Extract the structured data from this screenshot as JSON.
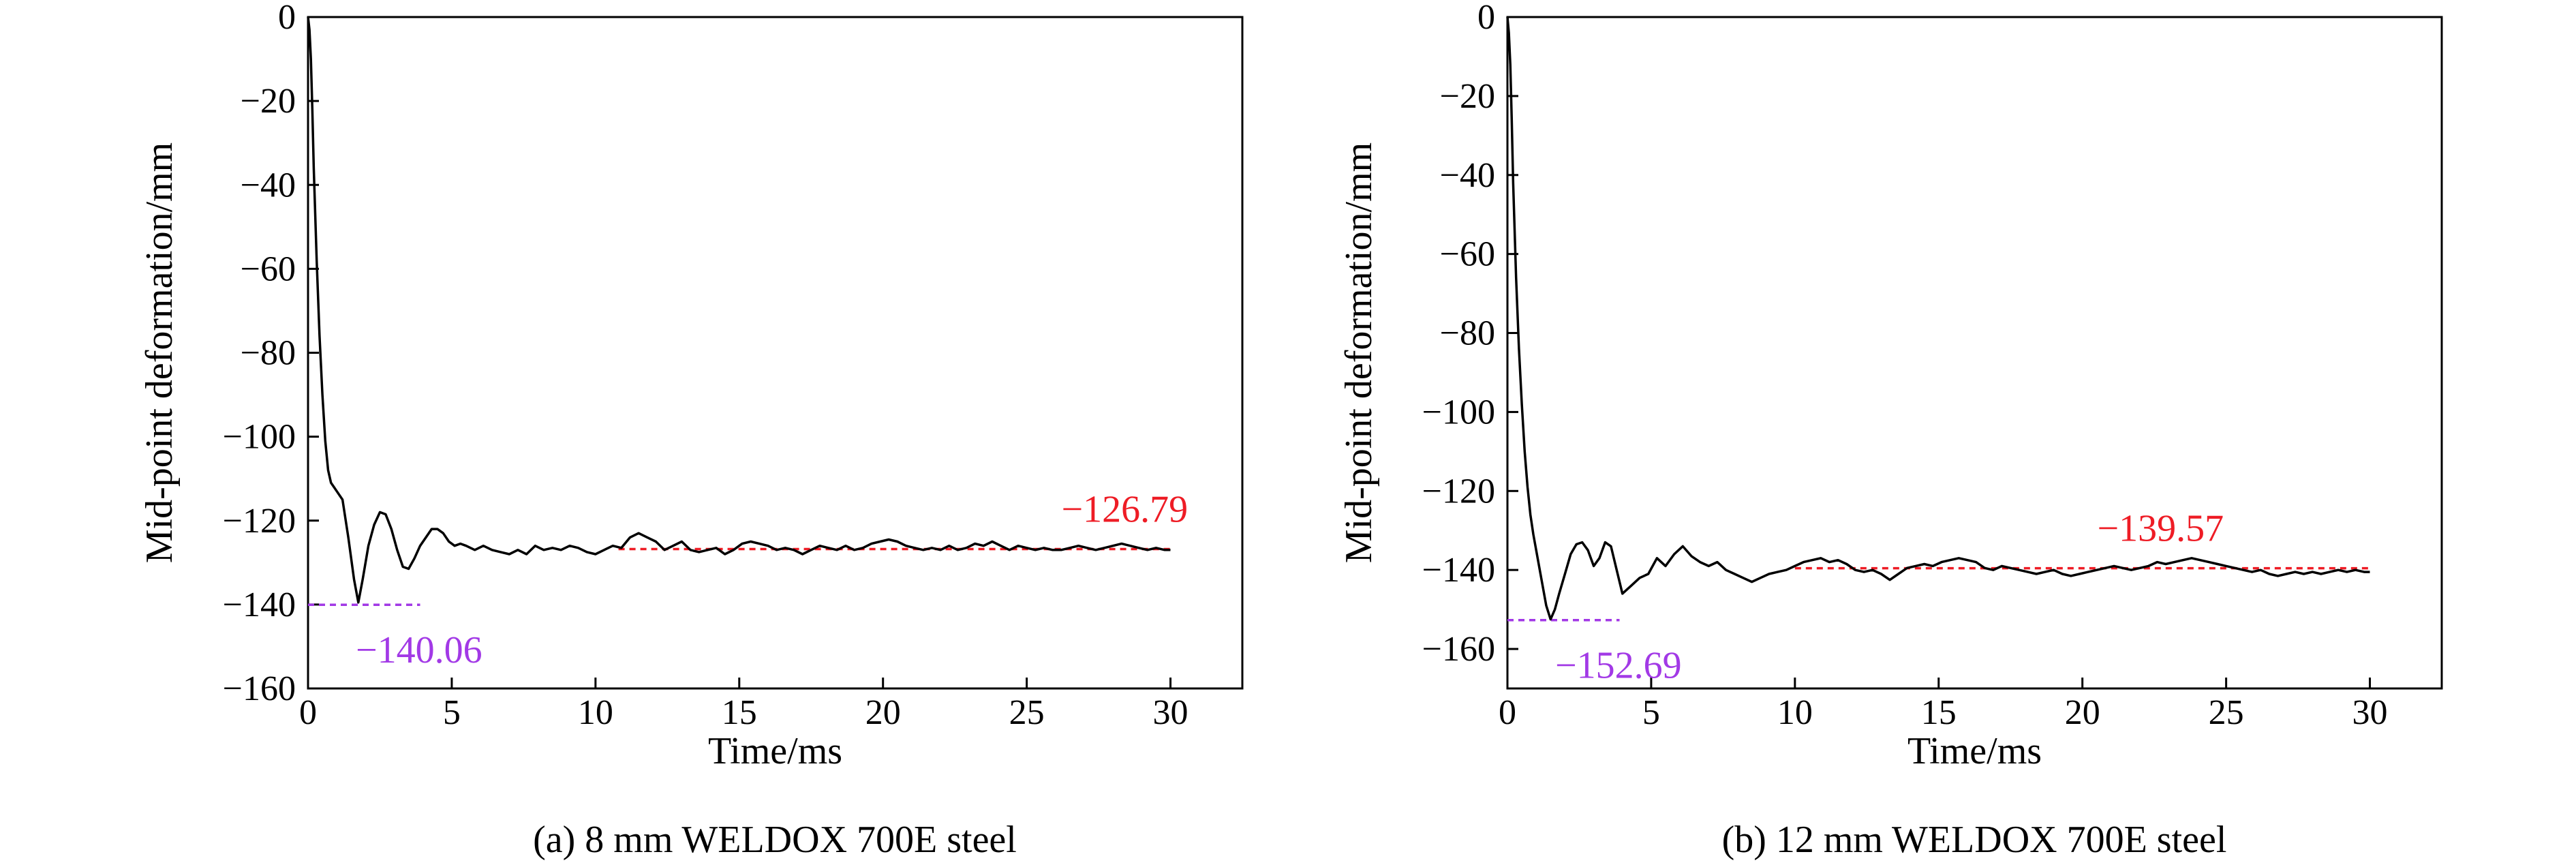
{
  "colors": {
    "curve": "#000000",
    "final_annotation": "#ee1c25",
    "peak_annotation": "#a239e6"
  },
  "chart_data": [
    {
      "type": "line",
      "caption": "(a) 8 mm WELDOX 700E steel",
      "xlabel": "Time/ms",
      "ylabel": "Mid-point deformation/mm",
      "xlim": [
        0,
        32.5
      ],
      "ylim": [
        -160,
        0
      ],
      "xticks": [
        0,
        5,
        10,
        15,
        20,
        25,
        30
      ],
      "yticks": [
        0,
        -20,
        -40,
        -60,
        -80,
        -100,
        -120,
        -140,
        -160
      ],
      "xtick_labels": [
        "0",
        "5",
        "10",
        "15",
        "20",
        "25",
        "30"
      ],
      "ytick_labels": [
        "0",
        "−20",
        "−40",
        "−60",
        "−80",
        "−100",
        "−120",
        "−140",
        "−160"
      ],
      "grid": false,
      "series": [
        {
          "x": [
            0,
            0.05,
            0.1,
            0.15,
            0.2,
            0.3,
            0.4,
            0.5,
            0.6,
            0.7,
            0.8,
            0.9,
            1.0,
            1.2,
            1.4,
            1.6,
            1.75,
            1.9,
            2.1,
            2.3,
            2.5,
            2.7,
            2.9,
            3.1,
            3.3,
            3.5,
            3.7,
            3.9,
            4.1,
            4.3,
            4.5,
            4.7,
            4.9,
            5.1,
            5.3,
            5.5,
            5.8,
            6.1,
            6.4,
            6.7,
            7.0,
            7.3,
            7.6,
            7.9,
            8.2,
            8.5,
            8.8,
            9.1,
            9.4,
            9.7,
            10.0,
            10.3,
            10.6,
            10.9,
            11.2,
            11.5,
            11.8,
            12.1,
            12.4,
            12.7,
            13.0,
            13.3,
            13.6,
            13.9,
            14.2,
            14.5,
            14.8,
            15.1,
            15.4,
            15.7,
            16.0,
            16.3,
            16.6,
            16.9,
            17.2,
            17.5,
            17.8,
            18.1,
            18.4,
            18.7,
            19.0,
            19.3,
            19.6,
            19.9,
            20.2,
            20.5,
            20.8,
            21.1,
            21.4,
            21.7,
            22.0,
            22.3,
            22.6,
            22.9,
            23.2,
            23.5,
            23.8,
            24.1,
            24.4,
            24.7,
            25.0,
            25.3,
            25.6,
            25.9,
            26.2,
            26.5,
            26.8,
            27.1,
            27.4,
            27.7,
            28.0,
            28.3,
            28.6,
            28.9,
            29.2,
            29.5,
            29.8,
            30.0
          ],
          "y": [
            0,
            -3,
            -10,
            -22,
            -36,
            -58,
            -76,
            -90,
            -101,
            -108,
            -111,
            -112,
            -113,
            -115,
            -124,
            -134,
            -139.5,
            -134,
            -126,
            -121,
            -118,
            -118.5,
            -122,
            -127,
            -131,
            -131.5,
            -129,
            -126,
            -124,
            -122,
            -122,
            -123,
            -125,
            -126,
            -125.5,
            -126,
            -127,
            -126,
            -127,
            -127.5,
            -128,
            -127,
            -128,
            -126,
            -127,
            -126.5,
            -127,
            -126,
            -126.5,
            -127.5,
            -128,
            -127,
            -126,
            -126.5,
            -124,
            -123,
            -124,
            -125,
            -127,
            -126,
            -125,
            -127,
            -127.5,
            -127,
            -126.5,
            -128,
            -127,
            -125.5,
            -125,
            -125.5,
            -126,
            -127,
            -126.5,
            -127,
            -128,
            -127,
            -126,
            -126.5,
            -127,
            -126,
            -127,
            -126.5,
            -125.5,
            -125,
            -124.5,
            -125,
            -126,
            -126.5,
            -127,
            -126.5,
            -127,
            -126,
            -127,
            -126.5,
            -125.5,
            -126,
            -125,
            -126,
            -127,
            -126,
            -126.5,
            -127,
            -126.5,
            -127,
            -127,
            -126.5,
            -126,
            -126.5,
            -127,
            -126.5,
            -126,
            -125.5,
            -126,
            -126.5,
            -127,
            -126.5,
            -127,
            -127
          ]
        }
      ],
      "annotations": [
        {
          "text": "−126.79",
          "value": -126.79,
          "color": "red",
          "line_x": [
            10.8,
            30
          ]
        },
        {
          "text": "−140.06",
          "value": -140.06,
          "color": "purple",
          "line_x": [
            0,
            3.9
          ]
        }
      ]
    },
    {
      "type": "line",
      "caption": "(b) 12 mm WELDOX 700E steel",
      "xlabel": "Time/ms",
      "ylabel": "Mid-point deformation/mm",
      "xlim": [
        0,
        32.5
      ],
      "ylim": [
        -170,
        0
      ],
      "xticks": [
        0,
        5,
        10,
        15,
        20,
        25,
        30
      ],
      "yticks": [
        0,
        -20,
        -40,
        -60,
        -80,
        -100,
        -120,
        -140,
        -160
      ],
      "xtick_labels": [
        "0",
        "5",
        "10",
        "15",
        "20",
        "25",
        "30"
      ],
      "ytick_labels": [
        "0",
        "−20",
        "−40",
        "−60",
        "−80",
        "−100",
        "−120",
        "−140",
        "−160"
      ],
      "grid": false,
      "series": [
        {
          "x": [
            0,
            0.05,
            0.1,
            0.15,
            0.2,
            0.3,
            0.4,
            0.5,
            0.6,
            0.7,
            0.8,
            0.9,
            1.0,
            1.1,
            1.2,
            1.35,
            1.5,
            1.65,
            1.8,
            2.0,
            2.2,
            2.4,
            2.6,
            2.8,
            3.0,
            3.2,
            3.4,
            3.6,
            3.8,
            4.0,
            4.3,
            4.6,
            4.9,
            5.2,
            5.5,
            5.8,
            6.1,
            6.4,
            6.7,
            7.0,
            7.3,
            7.6,
            7.9,
            8.2,
            8.5,
            8.8,
            9.1,
            9.4,
            9.7,
            10.0,
            10.3,
            10.6,
            10.9,
            11.2,
            11.5,
            11.8,
            12.1,
            12.4,
            12.7,
            13.0,
            13.3,
            13.6,
            13.9,
            14.2,
            14.5,
            14.8,
            15.1,
            15.4,
            15.7,
            16.0,
            16.3,
            16.6,
            16.9,
            17.2,
            17.5,
            17.8,
            18.1,
            18.4,
            18.7,
            19.0,
            19.3,
            19.6,
            19.9,
            20.2,
            20.5,
            20.8,
            21.1,
            21.4,
            21.7,
            22.0,
            22.3,
            22.6,
            22.9,
            23.2,
            23.5,
            23.8,
            24.1,
            24.4,
            24.7,
            25.0,
            25.3,
            25.6,
            25.9,
            26.2,
            26.5,
            26.8,
            27.1,
            27.4,
            27.7,
            28.0,
            28.3,
            28.6,
            28.9,
            29.2,
            29.5,
            29.8,
            30.0
          ],
          "y": [
            0,
            -4,
            -12,
            -26,
            -42,
            -66,
            -84,
            -98,
            -110,
            -119,
            -126,
            -131,
            -135,
            -139,
            -143,
            -149,
            -152.5,
            -150,
            -146,
            -141,
            -136,
            -133.5,
            -133,
            -135,
            -139,
            -137,
            -133,
            -134,
            -140,
            -146,
            -144,
            -142,
            -141,
            -137,
            -139,
            -136,
            -134,
            -136.5,
            -138,
            -139,
            -138,
            -140,
            -141,
            -142,
            -143,
            -142,
            -141,
            -140.5,
            -140,
            -139,
            -138,
            -137.5,
            -137,
            -138,
            -137.5,
            -138.5,
            -140,
            -140.5,
            -140,
            -141,
            -142.5,
            -141,
            -139.5,
            -139,
            -138.5,
            -139,
            -138,
            -137.5,
            -137,
            -137.5,
            -138,
            -139.5,
            -140,
            -139,
            -139.5,
            -140,
            -140.5,
            -141,
            -140.5,
            -140,
            -141,
            -141.5,
            -141,
            -140.5,
            -140,
            -139.5,
            -139,
            -139.5,
            -140,
            -139.5,
            -139,
            -138,
            -138.5,
            -138,
            -137.5,
            -137,
            -137.5,
            -138,
            -138.5,
            -139,
            -139.5,
            -140,
            -140.5,
            -140,
            -141,
            -141.5,
            -141,
            -140.5,
            -141,
            -140.5,
            -141,
            -140.5,
            -140,
            -140.5,
            -140,
            -140.5,
            -140.5
          ]
        }
      ],
      "annotations": [
        {
          "text": "−139.57",
          "value": -139.57,
          "color": "red",
          "line_x": [
            10,
            30
          ]
        },
        {
          "text": "−152.69",
          "value": -152.69,
          "color": "purple",
          "line_x": [
            0,
            3.9
          ]
        }
      ]
    }
  ]
}
